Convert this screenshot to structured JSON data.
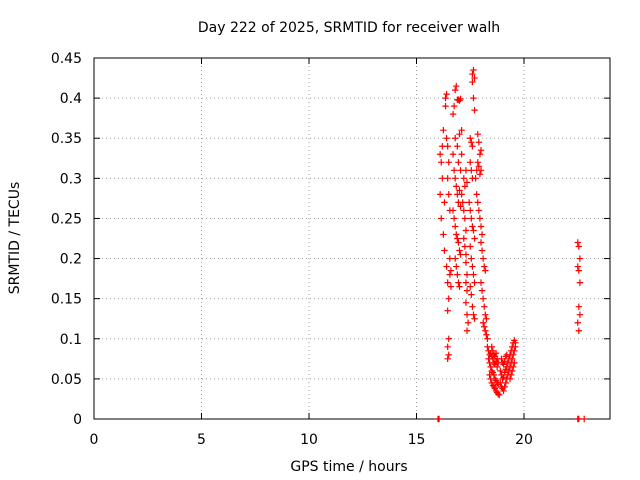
{
  "chart_data": {
    "type": "scatter",
    "title": "Day 222 of 2025, SRMTID for receiver walh",
    "xlabel": "GPS time / hours",
    "ylabel": "SRMTID / TECUs",
    "xlim": [
      0,
      24
    ],
    "ylim": [
      0,
      0.45
    ],
    "x_ticks": [
      0,
      5,
      10,
      15,
      20
    ],
    "x_tick_labels": [
      "0",
      "5",
      "10",
      "15",
      "20"
    ],
    "y_ticks": [
      0,
      0.05,
      0.1,
      0.15,
      0.2,
      0.25,
      0.3,
      0.35,
      0.4,
      0.45
    ],
    "y_tick_labels": [
      "0",
      "0.05",
      "0.1",
      "0.15",
      "0.2",
      "0.25",
      "0.3",
      "0.35",
      "0.4",
      "0.45"
    ],
    "grid": true,
    "marker": "+",
    "color": "#ff0000",
    "series": [
      {
        "name": "SRMTID",
        "points": [
          [
            16.0,
            0.0
          ],
          [
            16.05,
            0.0
          ],
          [
            22.5,
            0.0
          ],
          [
            22.55,
            0.0
          ],
          [
            22.8,
            0.0
          ],
          [
            16.1,
            0.28
          ],
          [
            16.15,
            0.32
          ],
          [
            16.2,
            0.34
          ],
          [
            16.25,
            0.36
          ],
          [
            16.1,
            0.33
          ],
          [
            16.2,
            0.3
          ],
          [
            16.3,
            0.27
          ],
          [
            16.15,
            0.25
          ],
          [
            16.25,
            0.23
          ],
          [
            16.3,
            0.21
          ],
          [
            16.35,
            0.4
          ],
          [
            16.4,
            0.405
          ],
          [
            16.35,
            0.39
          ],
          [
            16.4,
            0.35
          ],
          [
            16.45,
            0.34
          ],
          [
            16.5,
            0.32
          ],
          [
            16.45,
            0.3
          ],
          [
            16.5,
            0.28
          ],
          [
            16.55,
            0.26
          ],
          [
            16.4,
            0.19
          ],
          [
            16.45,
            0.17
          ],
          [
            16.5,
            0.15
          ],
          [
            16.45,
            0.135
          ],
          [
            16.5,
            0.1
          ],
          [
            16.45,
            0.09
          ],
          [
            16.5,
            0.08
          ],
          [
            16.45,
            0.075
          ],
          [
            16.55,
            0.2
          ],
          [
            16.6,
            0.185
          ],
          [
            16.55,
            0.18
          ],
          [
            16.6,
            0.165
          ],
          [
            16.7,
            0.38
          ],
          [
            16.75,
            0.39
          ],
          [
            16.8,
            0.41
          ],
          [
            16.85,
            0.415
          ],
          [
            16.9,
            0.398
          ],
          [
            16.95,
            0.398
          ],
          [
            17.0,
            0.397
          ],
          [
            17.05,
            0.399
          ],
          [
            16.7,
            0.33
          ],
          [
            16.75,
            0.31
          ],
          [
            16.8,
            0.3
          ],
          [
            16.85,
            0.29
          ],
          [
            16.9,
            0.28
          ],
          [
            16.95,
            0.27
          ],
          [
            17.0,
            0.285
          ],
          [
            17.05,
            0.265
          ],
          [
            16.8,
            0.35
          ],
          [
            16.9,
            0.34
          ],
          [
            17.0,
            0.355
          ],
          [
            17.1,
            0.36
          ],
          [
            16.95,
            0.32
          ],
          [
            17.05,
            0.31
          ],
          [
            17.1,
            0.33
          ],
          [
            16.7,
            0.26
          ],
          [
            16.75,
            0.25
          ],
          [
            16.8,
            0.24
          ],
          [
            16.85,
            0.23
          ],
          [
            16.9,
            0.225
          ],
          [
            16.95,
            0.22
          ],
          [
            17.0,
            0.21
          ],
          [
            17.05,
            0.205
          ],
          [
            16.8,
            0.2
          ],
          [
            16.85,
            0.19
          ],
          [
            16.9,
            0.18
          ],
          [
            16.95,
            0.17
          ],
          [
            17.0,
            0.165
          ],
          [
            17.1,
            0.28
          ],
          [
            17.15,
            0.27
          ],
          [
            17.2,
            0.26
          ],
          [
            17.25,
            0.25
          ],
          [
            17.3,
            0.235
          ],
          [
            17.2,
            0.225
          ],
          [
            17.25,
            0.215
          ],
          [
            17.3,
            0.205
          ],
          [
            17.2,
            0.3
          ],
          [
            17.25,
            0.29
          ],
          [
            17.3,
            0.31
          ],
          [
            17.35,
            0.295
          ],
          [
            17.3,
            0.195
          ],
          [
            17.35,
            0.18
          ],
          [
            17.3,
            0.17
          ],
          [
            17.35,
            0.16
          ],
          [
            17.3,
            0.145
          ],
          [
            17.35,
            0.13
          ],
          [
            17.4,
            0.12
          ],
          [
            17.35,
            0.11
          ],
          [
            17.5,
            0.35
          ],
          [
            17.55,
            0.345
          ],
          [
            17.6,
            0.34
          ],
          [
            17.5,
            0.32
          ],
          [
            17.55,
            0.31
          ],
          [
            17.6,
            0.3
          ],
          [
            17.6,
            0.43
          ],
          [
            17.65,
            0.435
          ],
          [
            17.7,
            0.425
          ],
          [
            17.6,
            0.42
          ],
          [
            17.65,
            0.4
          ],
          [
            17.7,
            0.385
          ],
          [
            17.45,
            0.27
          ],
          [
            17.5,
            0.26
          ],
          [
            17.55,
            0.25
          ],
          [
            17.6,
            0.24
          ],
          [
            17.65,
            0.235
          ],
          [
            17.7,
            0.225
          ],
          [
            17.5,
            0.215
          ],
          [
            17.55,
            0.2
          ],
          [
            17.6,
            0.19
          ],
          [
            17.65,
            0.18
          ],
          [
            17.7,
            0.17
          ],
          [
            17.5,
            0.165
          ],
          [
            17.55,
            0.155
          ],
          [
            17.6,
            0.14
          ],
          [
            17.65,
            0.13
          ],
          [
            17.7,
            0.125
          ],
          [
            17.75,
            0.3
          ],
          [
            17.8,
            0.31
          ],
          [
            17.85,
            0.32
          ],
          [
            17.9,
            0.315
          ],
          [
            17.95,
            0.305
          ],
          [
            18.0,
            0.31
          ],
          [
            17.8,
            0.28
          ],
          [
            17.85,
            0.27
          ],
          [
            17.9,
            0.26
          ],
          [
            17.95,
            0.25
          ],
          [
            18.0,
            0.24
          ],
          [
            18.05,
            0.23
          ],
          [
            17.85,
            0.355
          ],
          [
            17.9,
            0.345
          ],
          [
            17.95,
            0.33
          ],
          [
            18.0,
            0.335
          ],
          [
            18.0,
            0.22
          ],
          [
            18.05,
            0.21
          ],
          [
            18.1,
            0.2
          ],
          [
            18.15,
            0.19
          ],
          [
            18.2,
            0.185
          ],
          [
            18.0,
            0.17
          ],
          [
            18.05,
            0.16
          ],
          [
            18.1,
            0.15
          ],
          [
            18.15,
            0.14
          ],
          [
            18.2,
            0.13
          ],
          [
            18.25,
            0.125
          ],
          [
            18.1,
            0.12
          ],
          [
            18.15,
            0.115
          ],
          [
            18.2,
            0.11
          ],
          [
            18.25,
            0.105
          ],
          [
            18.3,
            0.1
          ],
          [
            18.3,
            0.09
          ],
          [
            18.35,
            0.085
          ],
          [
            18.4,
            0.08
          ],
          [
            18.45,
            0.082
          ],
          [
            18.5,
            0.078
          ],
          [
            18.55,
            0.075
          ],
          [
            18.6,
            0.07
          ],
          [
            18.65,
            0.068
          ],
          [
            18.7,
            0.072
          ],
          [
            18.75,
            0.065
          ],
          [
            18.35,
            0.075
          ],
          [
            18.4,
            0.07
          ],
          [
            18.45,
            0.065
          ],
          [
            18.5,
            0.06
          ],
          [
            18.55,
            0.058
          ],
          [
            18.6,
            0.055
          ],
          [
            18.65,
            0.05
          ],
          [
            18.7,
            0.048
          ],
          [
            18.75,
            0.045
          ],
          [
            18.8,
            0.043
          ],
          [
            18.4,
            0.055
          ],
          [
            18.45,
            0.05
          ],
          [
            18.5,
            0.045
          ],
          [
            18.55,
            0.042
          ],
          [
            18.6,
            0.04
          ],
          [
            18.65,
            0.038
          ],
          [
            18.7,
            0.035
          ],
          [
            18.75,
            0.033
          ],
          [
            18.8,
            0.031
          ],
          [
            18.85,
            0.03
          ],
          [
            18.5,
            0.09
          ],
          [
            18.55,
            0.085
          ],
          [
            18.6,
            0.08
          ],
          [
            18.65,
            0.078
          ],
          [
            18.7,
            0.082
          ],
          [
            18.75,
            0.075
          ],
          [
            18.8,
            0.07
          ],
          [
            18.9,
            0.06
          ],
          [
            18.95,
            0.055
          ],
          [
            19.0,
            0.05
          ],
          [
            19.05,
            0.052
          ],
          [
            19.1,
            0.058
          ],
          [
            19.15,
            0.062
          ],
          [
            19.2,
            0.065
          ],
          [
            19.25,
            0.07
          ],
          [
            18.9,
            0.045
          ],
          [
            18.95,
            0.04
          ],
          [
            19.0,
            0.038
          ],
          [
            19.05,
            0.035
          ],
          [
            19.1,
            0.04
          ],
          [
            19.15,
            0.045
          ],
          [
            19.2,
            0.05
          ],
          [
            19.25,
            0.055
          ],
          [
            18.95,
            0.075
          ],
          [
            19.0,
            0.07
          ],
          [
            19.05,
            0.068
          ],
          [
            19.1,
            0.072
          ],
          [
            19.15,
            0.078
          ],
          [
            19.2,
            0.08
          ],
          [
            19.3,
            0.075
          ],
          [
            19.35,
            0.08
          ],
          [
            19.4,
            0.085
          ],
          [
            19.45,
            0.09
          ],
          [
            19.5,
            0.095
          ],
          [
            19.55,
            0.098
          ],
          [
            19.6,
            0.095
          ],
          [
            19.3,
            0.06
          ],
          [
            19.35,
            0.065
          ],
          [
            19.4,
            0.07
          ],
          [
            19.45,
            0.075
          ],
          [
            19.5,
            0.08
          ],
          [
            19.55,
            0.085
          ],
          [
            19.6,
            0.09
          ],
          [
            19.35,
            0.05
          ],
          [
            19.4,
            0.055
          ],
          [
            19.45,
            0.06
          ],
          [
            19.5,
            0.065
          ],
          [
            19.55,
            0.07
          ],
          [
            22.5,
            0.22
          ],
          [
            22.55,
            0.215
          ],
          [
            22.6,
            0.2
          ],
          [
            22.5,
            0.19
          ],
          [
            22.55,
            0.185
          ],
          [
            22.6,
            0.17
          ],
          [
            22.55,
            0.14
          ],
          [
            22.6,
            0.13
          ],
          [
            22.5,
            0.12
          ],
          [
            22.55,
            0.11
          ]
        ]
      }
    ]
  }
}
